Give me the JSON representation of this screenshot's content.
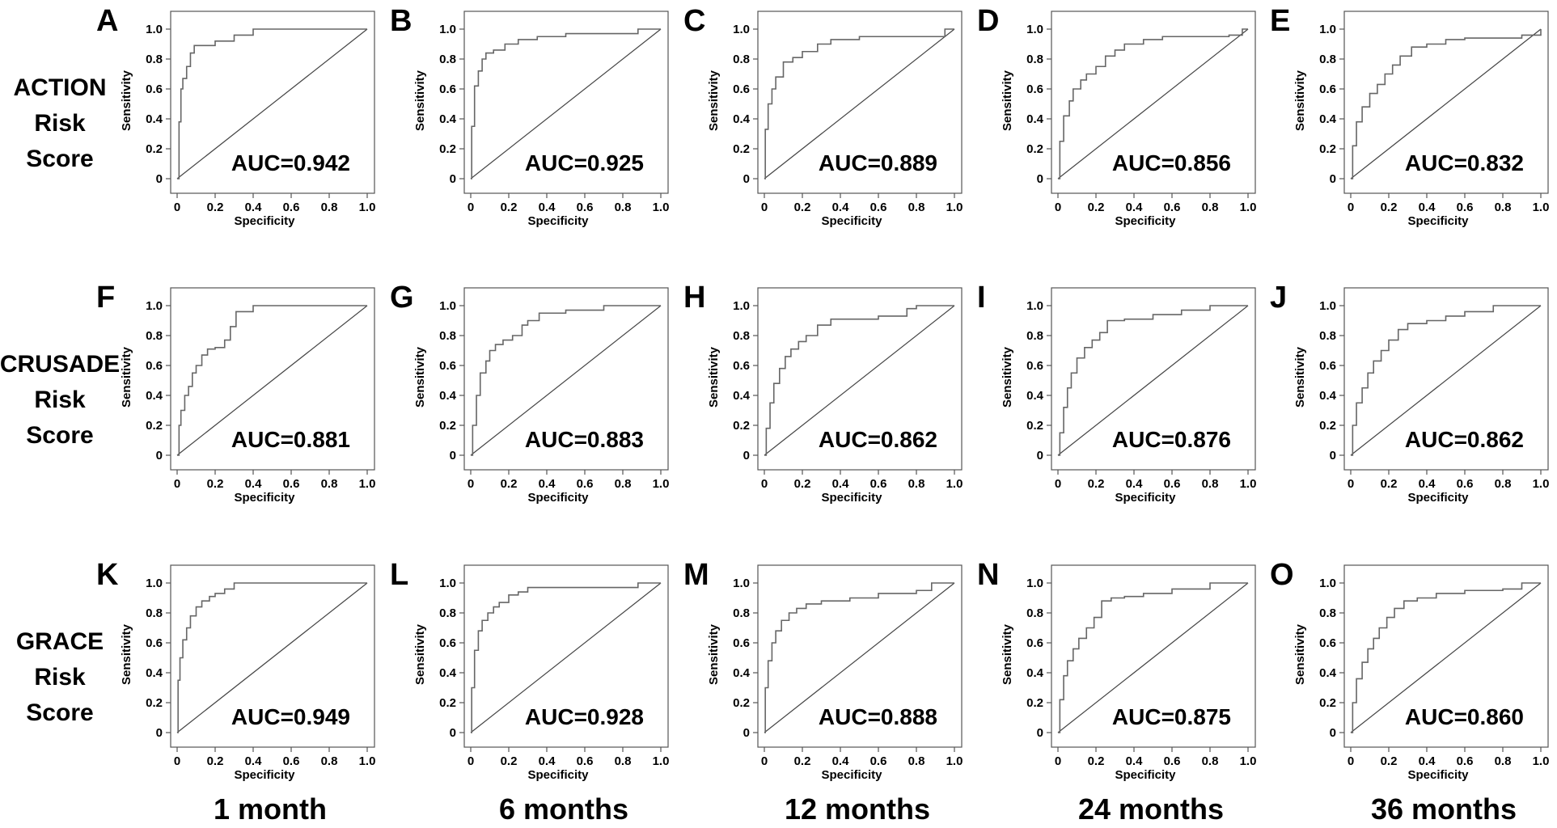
{
  "row_labels": [
    [
      "ACTION",
      "Risk",
      "Score"
    ],
    [
      "CRUSADE",
      "Risk",
      "Score"
    ],
    [
      "GRACE",
      "Risk",
      "Score"
    ]
  ],
  "column_labels": [
    "1 month",
    "6 months",
    "12 months",
    "24 months",
    "36 months"
  ],
  "chart_data": [
    {
      "panel": "A",
      "type": "line",
      "xlabel": "Specificity",
      "ylabel": "Sensitivity",
      "auc_label": "AUC=0.942",
      "xlim": [
        0,
        1
      ],
      "ylim": [
        0,
        1
      ],
      "x": [
        0,
        0.01,
        0.02,
        0.03,
        0.05,
        0.07,
        0.09,
        0.18,
        0.2,
        0.28,
        0.3,
        0.33,
        0.4,
        1
      ],
      "y": [
        0,
        0.38,
        0.6,
        0.67,
        0.75,
        0.84,
        0.89,
        0.89,
        0.92,
        0.92,
        0.96,
        0.96,
        1,
        1
      ]
    },
    {
      "panel": "B",
      "type": "line",
      "xlabel": "Specificity",
      "ylabel": "Sensitivity",
      "auc_label": "AUC=0.925",
      "xlim": [
        0,
        1
      ],
      "ylim": [
        0,
        1
      ],
      "x": [
        0,
        0.005,
        0.02,
        0.04,
        0.06,
        0.08,
        0.12,
        0.18,
        0.25,
        0.35,
        0.5,
        0.85,
        0.88,
        1
      ],
      "y": [
        0,
        0.35,
        0.62,
        0.72,
        0.8,
        0.84,
        0.86,
        0.9,
        0.93,
        0.95,
        0.97,
        0.97,
        1,
        1
      ]
    },
    {
      "panel": "C",
      "type": "line",
      "xlabel": "Specificity",
      "ylabel": "Sensitivity",
      "auc_label": "AUC=0.889",
      "xlim": [
        0,
        1
      ],
      "ylim": [
        0,
        1
      ],
      "x": [
        0,
        0.005,
        0.02,
        0.04,
        0.06,
        0.1,
        0.15,
        0.2,
        0.28,
        0.35,
        0.5,
        0.9,
        0.95,
        1
      ],
      "y": [
        0,
        0.33,
        0.5,
        0.6,
        0.68,
        0.78,
        0.81,
        0.85,
        0.9,
        0.93,
        0.95,
        0.95,
        1,
        1
      ]
    },
    {
      "panel": "D",
      "type": "line",
      "xlabel": "Specificity",
      "ylabel": "Sensitivity",
      "auc_label": "AUC=0.856",
      "xlim": [
        0,
        1
      ],
      "ylim": [
        0,
        1
      ],
      "x": [
        0,
        0.01,
        0.03,
        0.06,
        0.08,
        0.12,
        0.15,
        0.2,
        0.25,
        0.3,
        0.35,
        0.45,
        0.55,
        0.9,
        0.97,
        1
      ],
      "y": [
        0,
        0.25,
        0.42,
        0.52,
        0.6,
        0.66,
        0.7,
        0.75,
        0.82,
        0.86,
        0.9,
        0.93,
        0.95,
        0.96,
        1,
        1
      ]
    },
    {
      "panel": "E",
      "type": "line",
      "xlabel": "Specificity",
      "ylabel": "Sensitivity",
      "auc_label": "AUC=0.832",
      "xlim": [
        0,
        1
      ],
      "ylim": [
        0,
        1
      ],
      "x": [
        0,
        0.01,
        0.03,
        0.06,
        0.1,
        0.14,
        0.18,
        0.22,
        0.26,
        0.32,
        0.4,
        0.5,
        0.6,
        0.9,
        1
      ],
      "y": [
        0,
        0.22,
        0.38,
        0.48,
        0.57,
        0.63,
        0.7,
        0.76,
        0.82,
        0.88,
        0.9,
        0.93,
        0.94,
        0.96,
        1
      ]
    },
    {
      "panel": "F",
      "type": "line",
      "xlabel": "Specificity",
      "ylabel": "Sensitivity",
      "auc_label": "AUC=0.881",
      "xlim": [
        0,
        1
      ],
      "ylim": [
        0,
        1
      ],
      "x": [
        0,
        0.01,
        0.02,
        0.04,
        0.06,
        0.08,
        0.1,
        0.13,
        0.16,
        0.2,
        0.25,
        0.28,
        0.31,
        0.4,
        1
      ],
      "y": [
        0,
        0.2,
        0.3,
        0.4,
        0.46,
        0.55,
        0.6,
        0.67,
        0.71,
        0.72,
        0.77,
        0.86,
        0.96,
        1,
        1
      ]
    },
    {
      "panel": "G",
      "type": "line",
      "xlabel": "Specificity",
      "ylabel": "Sensitivity",
      "auc_label": "AUC=0.883",
      "xlim": [
        0,
        1
      ],
      "ylim": [
        0,
        1
      ],
      "x": [
        0,
        0.01,
        0.03,
        0.05,
        0.08,
        0.1,
        0.13,
        0.17,
        0.22,
        0.27,
        0.3,
        0.36,
        0.5,
        0.7,
        1
      ],
      "y": [
        0,
        0.2,
        0.4,
        0.55,
        0.63,
        0.7,
        0.74,
        0.77,
        0.8,
        0.87,
        0.9,
        0.95,
        0.97,
        1,
        1
      ]
    },
    {
      "panel": "H",
      "type": "line",
      "xlabel": "Specificity",
      "ylabel": "Sensitivity",
      "auc_label": "AUC=0.862",
      "xlim": [
        0,
        1
      ],
      "ylim": [
        0,
        1
      ],
      "x": [
        0,
        0.01,
        0.03,
        0.05,
        0.08,
        0.11,
        0.14,
        0.18,
        0.22,
        0.28,
        0.35,
        0.6,
        0.75,
        0.8,
        1
      ],
      "y": [
        0,
        0.18,
        0.35,
        0.48,
        0.58,
        0.66,
        0.71,
        0.76,
        0.8,
        0.87,
        0.91,
        0.93,
        0.98,
        1,
        1
      ]
    },
    {
      "panel": "I",
      "type": "line",
      "xlabel": "Specificity",
      "ylabel": "Sensitivity",
      "auc_label": "AUC=0.876",
      "xlim": [
        0,
        1
      ],
      "ylim": [
        0,
        1
      ],
      "x": [
        0,
        0.01,
        0.03,
        0.05,
        0.07,
        0.1,
        0.14,
        0.18,
        0.22,
        0.26,
        0.35,
        0.5,
        0.65,
        0.8,
        1
      ],
      "y": [
        0,
        0.15,
        0.32,
        0.45,
        0.55,
        0.65,
        0.72,
        0.77,
        0.82,
        0.9,
        0.91,
        0.94,
        0.97,
        1,
        1
      ]
    },
    {
      "panel": "J",
      "type": "line",
      "xlabel": "Specificity",
      "ylabel": "Sensitivity",
      "auc_label": "AUC=0.862",
      "xlim": [
        0,
        1
      ],
      "ylim": [
        0,
        1
      ],
      "x": [
        0,
        0.01,
        0.03,
        0.06,
        0.09,
        0.12,
        0.16,
        0.2,
        0.25,
        0.3,
        0.4,
        0.5,
        0.6,
        0.75,
        1
      ],
      "y": [
        0,
        0.2,
        0.35,
        0.45,
        0.55,
        0.63,
        0.7,
        0.77,
        0.84,
        0.88,
        0.9,
        0.93,
        0.96,
        1,
        1
      ]
    },
    {
      "panel": "K",
      "type": "line",
      "xlabel": "Specificity",
      "ylabel": "Sensitivity",
      "auc_label": "AUC=0.949",
      "xlim": [
        0,
        1
      ],
      "ylim": [
        0,
        1
      ],
      "x": [
        0,
        0.005,
        0.015,
        0.03,
        0.05,
        0.07,
        0.1,
        0.13,
        0.17,
        0.2,
        0.25,
        0.3,
        1
      ],
      "y": [
        0,
        0.35,
        0.5,
        0.62,
        0.7,
        0.78,
        0.84,
        0.88,
        0.91,
        0.93,
        0.96,
        1,
        1
      ]
    },
    {
      "panel": "L",
      "type": "line",
      "xlabel": "Specificity",
      "ylabel": "Sensitivity",
      "auc_label": "AUC=0.928",
      "xlim": [
        0,
        1
      ],
      "ylim": [
        0,
        1
      ],
      "x": [
        0,
        0.005,
        0.02,
        0.04,
        0.06,
        0.09,
        0.12,
        0.15,
        0.2,
        0.25,
        0.3,
        0.85,
        0.88,
        1
      ],
      "y": [
        0,
        0.3,
        0.55,
        0.68,
        0.75,
        0.8,
        0.84,
        0.87,
        0.92,
        0.94,
        0.97,
        0.97,
        1,
        1
      ]
    },
    {
      "panel": "M",
      "type": "line",
      "xlabel": "Specificity",
      "ylabel": "Sensitivity",
      "auc_label": "AUC=0.888",
      "xlim": [
        0,
        1
      ],
      "ylim": [
        0,
        1
      ],
      "x": [
        0,
        0.005,
        0.02,
        0.04,
        0.06,
        0.09,
        0.13,
        0.17,
        0.22,
        0.3,
        0.45,
        0.6,
        0.8,
        0.88,
        1
      ],
      "y": [
        0,
        0.3,
        0.48,
        0.6,
        0.68,
        0.75,
        0.8,
        0.83,
        0.86,
        0.88,
        0.9,
        0.93,
        0.95,
        1,
        1
      ]
    },
    {
      "panel": "N",
      "type": "line",
      "xlabel": "Specificity",
      "ylabel": "Sensitivity",
      "auc_label": "AUC=0.875",
      "xlim": [
        0,
        1
      ],
      "ylim": [
        0,
        1
      ],
      "x": [
        0,
        0.01,
        0.03,
        0.05,
        0.08,
        0.11,
        0.15,
        0.19,
        0.23,
        0.28,
        0.35,
        0.45,
        0.6,
        0.8,
        1
      ],
      "y": [
        0,
        0.22,
        0.38,
        0.48,
        0.56,
        0.63,
        0.7,
        0.77,
        0.88,
        0.9,
        0.91,
        0.93,
        0.96,
        1,
        1
      ]
    },
    {
      "panel": "O",
      "type": "line",
      "xlabel": "Specificity",
      "ylabel": "Sensitivity",
      "auc_label": "AUC=0.860",
      "xlim": [
        0,
        1
      ],
      "ylim": [
        0,
        1
      ],
      "x": [
        0,
        0.01,
        0.03,
        0.06,
        0.09,
        0.12,
        0.15,
        0.19,
        0.23,
        0.28,
        0.35,
        0.45,
        0.6,
        0.8,
        0.9,
        1
      ],
      "y": [
        0,
        0.2,
        0.36,
        0.47,
        0.56,
        0.63,
        0.7,
        0.77,
        0.83,
        0.88,
        0.9,
        0.93,
        0.95,
        0.96,
        1,
        1
      ]
    }
  ]
}
